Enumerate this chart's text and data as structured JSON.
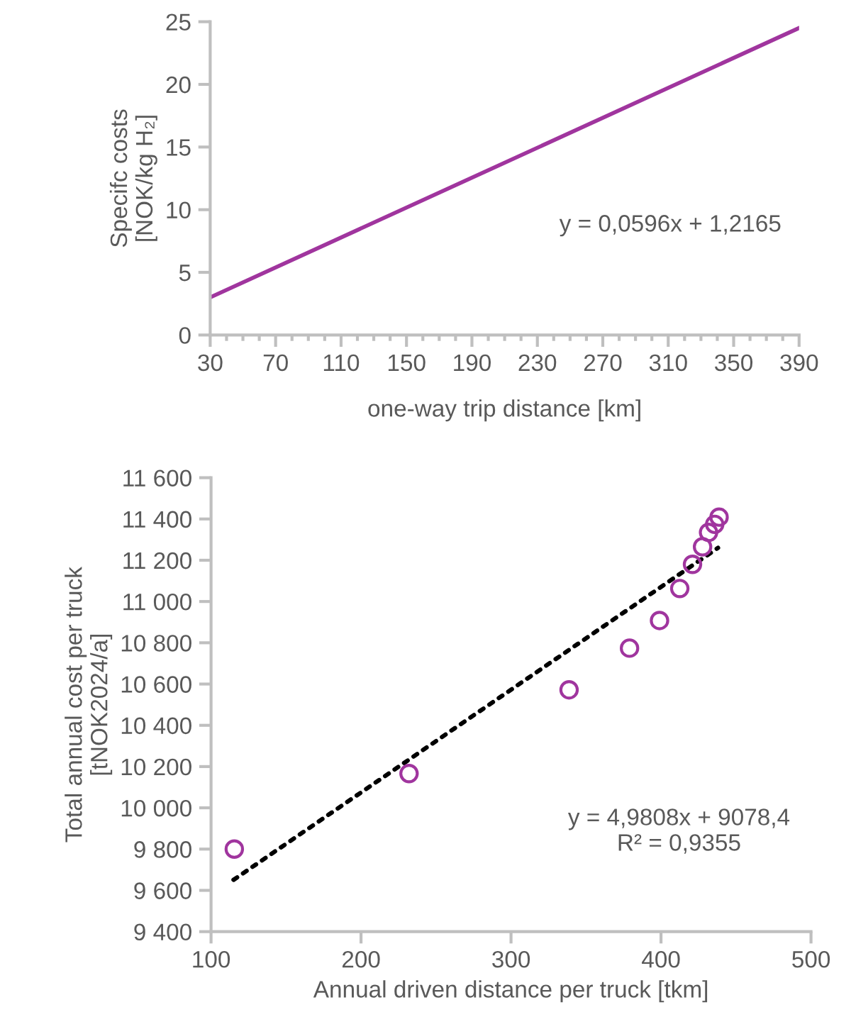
{
  "chart_data": [
    {
      "type": "line",
      "xlabel": "one-way trip distance [km]",
      "ylabel": "Specifc costs\n[NOK/kg H₂]",
      "series": [
        {
          "color": "#a0359e",
          "x": [
            30,
            390
          ],
          "values": [
            3.0,
            24.5
          ]
        }
      ],
      "xlim": [
        30,
        390
      ],
      "xticks": [
        30,
        70,
        110,
        150,
        190,
        230,
        270,
        310,
        350,
        390
      ],
      "ylim": [
        0,
        25
      ],
      "yticks": [
        0,
        5,
        10,
        15,
        20,
        25
      ],
      "grid": false,
      "legend": false,
      "marker": "none",
      "line_style": "solid",
      "annotations": [
        "y = 0,0596x + 1,2165"
      ]
    },
    {
      "type": "scatter",
      "xlabel": "Annual driven distance per truck [tkm]",
      "ylabel": "Total annual cost per truck\n[tNOK2024/a]",
      "series": [
        {
          "type": "scatter",
          "color": "#a0359e",
          "marker": "circle",
          "x": [
            115.5,
            232,
            338.7,
            379,
            399,
            412.5,
            421,
            427.7,
            431.7,
            435.8,
            438.7
          ],
          "values": [
            9800,
            10166,
            10572,
            10774,
            10908,
            11063,
            11180,
            11265,
            11335,
            11374,
            11409
          ]
        },
        {
          "type": "line",
          "color": "#000000",
          "line_style": "dotted",
          "marker": "none",
          "x": [
            115,
            438
          ],
          "values": [
            9651,
            11260
          ]
        }
      ],
      "xlim": [
        100,
        500
      ],
      "xticks": [
        100,
        200,
        300,
        400,
        500
      ],
      "ylim": [
        9400,
        11600
      ],
      "yticks": [
        {
          "value": 9400,
          "label": "9 400"
        },
        {
          "value": 9600,
          "label": "9 600"
        },
        {
          "value": 9800,
          "label": "9 800"
        },
        {
          "value": 10000,
          "label": "10 000"
        },
        {
          "value": 10200,
          "label": "10 200"
        },
        {
          "value": 10400,
          "label": "10 400"
        },
        {
          "value": 10600,
          "label": "10 600"
        },
        {
          "value": 10800,
          "label": "10 800"
        },
        {
          "value": 11000,
          "label": "11 000"
        },
        {
          "value": 11200,
          "label": "11 200"
        },
        {
          "value": 11400,
          "label": "11 400"
        },
        {
          "value": 11600,
          "label": "11 600"
        }
      ],
      "grid": false,
      "legend": false,
      "annotations": [
        "y = 4,9808x + 9078,4\nR² = 0,9355"
      ]
    }
  ]
}
